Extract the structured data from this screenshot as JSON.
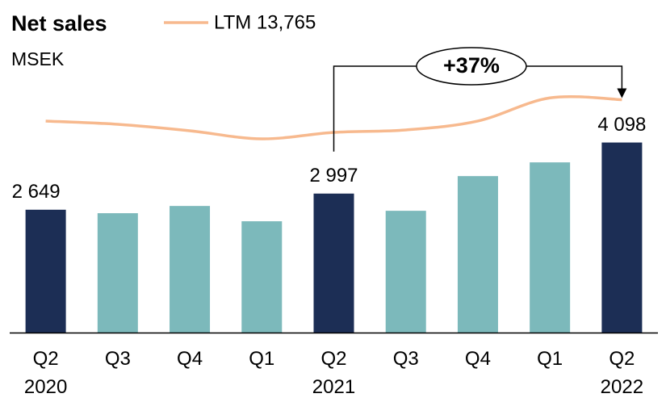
{
  "chart_data": {
    "type": "bar",
    "title": "Net sales",
    "subtitle": "MSEK",
    "categories": [
      "Q2\n2020",
      "Q3",
      "Q4",
      "Q1",
      "Q2\n2021",
      "Q3",
      "Q4",
      "Q1",
      "Q2\n2022"
    ],
    "values": [
      2649,
      2574,
      2730,
      2400,
      2997,
      2626,
      3374,
      3670,
      4098
    ],
    "value_labels": [
      "2 649",
      null,
      null,
      null,
      "2 997",
      null,
      null,
      null,
      "4 098"
    ],
    "colors": [
      "#1c2e55",
      "#7cb9bb",
      "#7cb9bb",
      "#7cb9bb",
      "#1c2e55",
      "#7cb9bb",
      "#7cb9bb",
      "#7cb9bb",
      "#1c2e55"
    ],
    "ylim": [
      0,
      5500
    ],
    "y2lim": [
      9200,
      14200
    ],
    "line_series": {
      "name": "LTM 13,765",
      "color": "#f7b98e",
      "axis": "y2",
      "values": [
        13346,
        13282,
        13156,
        12997,
        13124,
        13172,
        13346,
        13800,
        13765
      ]
    },
    "annotation": "+37%"
  }
}
